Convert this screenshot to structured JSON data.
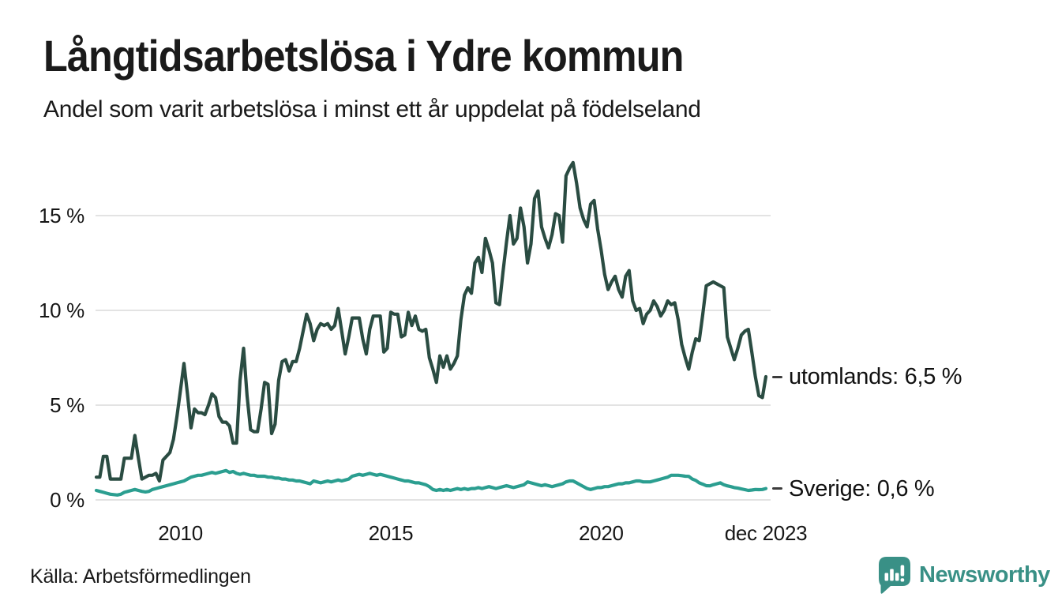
{
  "header": {
    "title": "Långtidsarbetslösa i Ydre kommun",
    "subtitle": "Andel som varit arbetslösa i minst ett år uppdelat på födelseland"
  },
  "footer": {
    "source": "Källa: Arbetsförmedlingen",
    "logo_text": "Newsworthy"
  },
  "colors": {
    "series_utomlands": "#2a4c42",
    "series_sverige": "#2b9e90",
    "gridline": "#e3e3e3",
    "text": "#1a1a1a",
    "logo_teal": "#399086",
    "annotation_dash": "#3c3c3c"
  },
  "chart_data": {
    "type": "line",
    "title": "Långtidsarbetslösa i Ydre kommun",
    "subtitle": "Andel som varit arbetslösa i minst ett år uppdelat på födelseland",
    "frequency": "monthly",
    "x_start": "2008-01",
    "x_end": "2023-12",
    "grid": "horizontal-only",
    "legend_position": "end-of-line-annotations",
    "y_axis": {
      "unit": "%",
      "range": [
        0,
        18
      ],
      "ticks": [
        {
          "value": 0,
          "label": "0 %"
        },
        {
          "value": 5,
          "label": "5 %"
        },
        {
          "value": 10,
          "label": "10 %"
        },
        {
          "value": 15,
          "label": "15 %"
        }
      ]
    },
    "x_axis": {
      "ticks": [
        {
          "label": "2010",
          "month_index": 24
        },
        {
          "label": "2015",
          "month_index": 84
        },
        {
          "label": "2020",
          "month_index": 144
        },
        {
          "label": "dec 2023",
          "month_index": 191
        }
      ]
    },
    "series": [
      {
        "name": "utomlands",
        "color": "#2a4c42",
        "end_label": "utomlands: 6,5 %",
        "end_value": "6,5 %",
        "values": [
          1.2,
          1.2,
          2.3,
          2.3,
          1.1,
          1.1,
          1.1,
          1.1,
          2.2,
          2.2,
          2.2,
          3.4,
          2.2,
          1.1,
          1.2,
          1.3,
          1.3,
          1.4,
          1.0,
          2.1,
          2.3,
          2.5,
          3.2,
          4.4,
          5.8,
          7.2,
          5.6,
          3.8,
          4.8,
          4.6,
          4.6,
          4.5,
          5.0,
          5.6,
          5.4,
          4.4,
          4.1,
          4.1,
          3.9,
          3.0,
          3.0,
          6.3,
          8.0,
          5.5,
          3.7,
          3.6,
          3.6,
          4.8,
          6.2,
          6.1,
          3.5,
          4.0,
          6.3,
          7.3,
          7.4,
          6.8,
          7.3,
          7.3,
          8.0,
          8.9,
          9.8,
          9.3,
          8.4,
          9.0,
          9.3,
          9.2,
          9.3,
          9.0,
          9.2,
          10.1,
          8.9,
          7.7,
          8.6,
          9.6,
          9.6,
          9.6,
          8.5,
          7.7,
          9.0,
          9.7,
          9.7,
          9.7,
          7.8,
          8.0,
          9.9,
          9.8,
          9.8,
          8.6,
          8.7,
          9.9,
          9.2,
          9.7,
          9.0,
          8.9,
          9.0,
          7.5,
          6.9,
          6.2,
          7.6,
          7.0,
          7.6,
          6.9,
          7.2,
          7.6,
          9.5,
          10.8,
          11.2,
          10.9,
          12.5,
          12.8,
          12.0,
          13.8,
          13.2,
          12.5,
          10.4,
          10.3,
          12.0,
          13.6,
          15.0,
          13.5,
          13.8,
          15.4,
          14.4,
          12.5,
          13.5,
          15.9,
          16.3,
          14.4,
          13.8,
          13.3,
          14.0,
          15.1,
          15.0,
          13.6,
          17.1,
          17.5,
          17.8,
          16.7,
          15.4,
          14.8,
          14.4,
          15.6,
          15.8,
          14.3,
          13.2,
          11.9,
          11.1,
          11.5,
          11.8,
          11.1,
          10.7,
          11.8,
          12.1,
          10.5,
          10.0,
          10.1,
          9.3,
          9.8,
          10.0,
          10.5,
          10.2,
          9.7,
          10.0,
          10.5,
          10.3,
          10.4,
          9.5,
          8.2,
          7.5,
          6.9,
          7.8,
          8.5,
          8.4,
          9.8,
          11.3,
          11.4,
          11.5,
          11.4,
          11.3,
          11.2,
          8.6,
          8.0,
          7.4,
          8.0,
          8.7,
          8.9,
          9.0,
          7.8,
          6.5,
          5.5,
          5.4,
          6.5
        ]
      },
      {
        "name": "Sverige",
        "color": "#2b9e90",
        "end_label": "Sverige: 0,6 %",
        "end_value": "0,6 %",
        "values": [
          0.5,
          0.45,
          0.4,
          0.35,
          0.3,
          0.28,
          0.26,
          0.3,
          0.4,
          0.45,
          0.5,
          0.55,
          0.5,
          0.45,
          0.42,
          0.45,
          0.55,
          0.6,
          0.65,
          0.7,
          0.75,
          0.8,
          0.85,
          0.9,
          0.95,
          1.0,
          1.1,
          1.2,
          1.25,
          1.3,
          1.3,
          1.35,
          1.4,
          1.45,
          1.4,
          1.45,
          1.5,
          1.55,
          1.45,
          1.5,
          1.4,
          1.35,
          1.4,
          1.35,
          1.3,
          1.3,
          1.25,
          1.25,
          1.25,
          1.2,
          1.2,
          1.15,
          1.15,
          1.1,
          1.1,
          1.05,
          1.05,
          1.0,
          1.0,
          0.95,
          0.9,
          0.85,
          1.0,
          0.95,
          0.9,
          0.95,
          1.0,
          0.95,
          1.0,
          1.05,
          1.0,
          1.05,
          1.1,
          1.25,
          1.3,
          1.35,
          1.3,
          1.35,
          1.4,
          1.35,
          1.3,
          1.35,
          1.3,
          1.25,
          1.2,
          1.15,
          1.1,
          1.05,
          1.0,
          1.0,
          0.95,
          0.9,
          0.9,
          0.85,
          0.8,
          0.7,
          0.55,
          0.5,
          0.55,
          0.5,
          0.55,
          0.5,
          0.55,
          0.6,
          0.55,
          0.6,
          0.55,
          0.6,
          0.6,
          0.65,
          0.6,
          0.65,
          0.7,
          0.65,
          0.6,
          0.65,
          0.7,
          0.75,
          0.7,
          0.65,
          0.7,
          0.75,
          0.8,
          0.95,
          0.9,
          0.85,
          0.8,
          0.75,
          0.8,
          0.75,
          0.7,
          0.75,
          0.8,
          0.85,
          0.95,
          1.0,
          1.0,
          0.9,
          0.8,
          0.7,
          0.6,
          0.55,
          0.6,
          0.65,
          0.65,
          0.7,
          0.7,
          0.75,
          0.8,
          0.85,
          0.85,
          0.9,
          0.9,
          0.95,
          1.0,
          1.0,
          0.95,
          0.95,
          0.95,
          1.0,
          1.05,
          1.1,
          1.15,
          1.2,
          1.3,
          1.3,
          1.3,
          1.28,
          1.25,
          1.24,
          1.1,
          1.03,
          0.9,
          0.83,
          0.75,
          0.74,
          0.8,
          0.85,
          0.9,
          0.8,
          0.74,
          0.7,
          0.65,
          0.62,
          0.58,
          0.54,
          0.5,
          0.52,
          0.55,
          0.54,
          0.55,
          0.6
        ]
      }
    ]
  }
}
